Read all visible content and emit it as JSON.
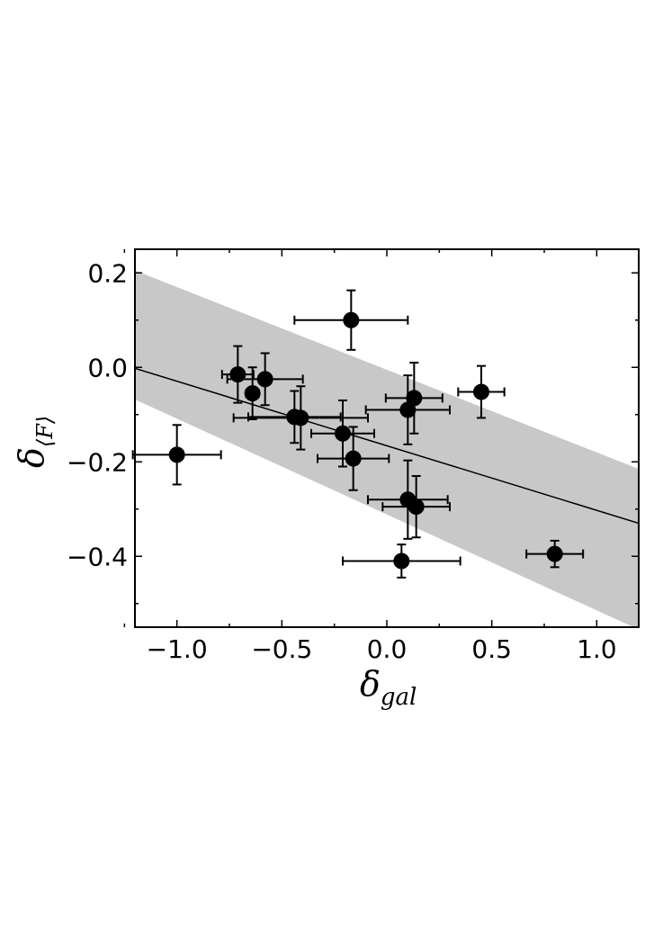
{
  "chart_data": {
    "type": "scatter",
    "xlabel": "δ",
    "xlabel_sub": "gal",
    "ylabel": "δ",
    "ylabel_sub": "⟨F⟩",
    "xlim": [
      -1.2,
      1.2
    ],
    "ylim": [
      -0.55,
      0.25
    ],
    "x_ticks": [
      -1.0,
      -0.5,
      0.0,
      0.5,
      1.0
    ],
    "x_tick_labels": [
      "−1.0",
      "−0.5",
      "0.0",
      "0.5",
      "1.0"
    ],
    "y_ticks": [
      0.2,
      0.0,
      -0.2,
      -0.4
    ],
    "y_tick_labels": [
      "0.2",
      "0.0",
      "−0.2",
      "−0.4"
    ],
    "grid": false,
    "points": [
      {
        "x": -1.0,
        "y": -0.185,
        "xerr": 0.21,
        "yerr": 0.063
      },
      {
        "x": -0.71,
        "y": -0.015,
        "xerr": 0.075,
        "yerr": 0.06
      },
      {
        "x": -0.64,
        "y": -0.055,
        "xerr": 0.03,
        "yerr": 0.055
      },
      {
        "x": -0.58,
        "y": -0.025,
        "xerr": 0.18,
        "yerr": 0.055
      },
      {
        "x": -0.44,
        "y": -0.105,
        "xerr": 0.22,
        "yerr": 0.055
      },
      {
        "x": -0.41,
        "y": -0.107,
        "xerr": 0.32,
        "yerr": 0.067
      },
      {
        "x": -0.21,
        "y": -0.14,
        "xerr": 0.15,
        "yerr": 0.07
      },
      {
        "x": -0.17,
        "y": 0.1,
        "xerr": 0.27,
        "yerr": 0.063
      },
      {
        "x": -0.16,
        "y": -0.193,
        "xerr": 0.17,
        "yerr": 0.067
      },
      {
        "x": 0.07,
        "y": -0.41,
        "xerr": 0.28,
        "yerr": 0.035
      },
      {
        "x": 0.1,
        "y": -0.09,
        "xerr": 0.2,
        "yerr": 0.073
      },
      {
        "x": 0.1,
        "y": -0.28,
        "xerr": 0.19,
        "yerr": 0.083
      },
      {
        "x": 0.13,
        "y": -0.065,
        "xerr": 0.135,
        "yerr": 0.075
      },
      {
        "x": 0.14,
        "y": -0.295,
        "xerr": 0.16,
        "yerr": 0.065
      },
      {
        "x": 0.45,
        "y": -0.052,
        "xerr": 0.11,
        "yerr": 0.055
      },
      {
        "x": 0.8,
        "y": -0.395,
        "xerr": 0.135,
        "yerr": 0.028
      }
    ],
    "fit_line": {
      "x": [
        -1.2,
        1.2
      ],
      "y": [
        -0.002,
        -0.33
      ]
    },
    "confidence_band": {
      "x": [
        -1.2,
        1.2
      ],
      "upper": [
        0.205,
        -0.215
      ],
      "lower": [
        -0.068,
        -0.555
      ]
    },
    "colors": {
      "points": "#000000",
      "band": "#c8c8c8",
      "line": "#000000"
    }
  }
}
